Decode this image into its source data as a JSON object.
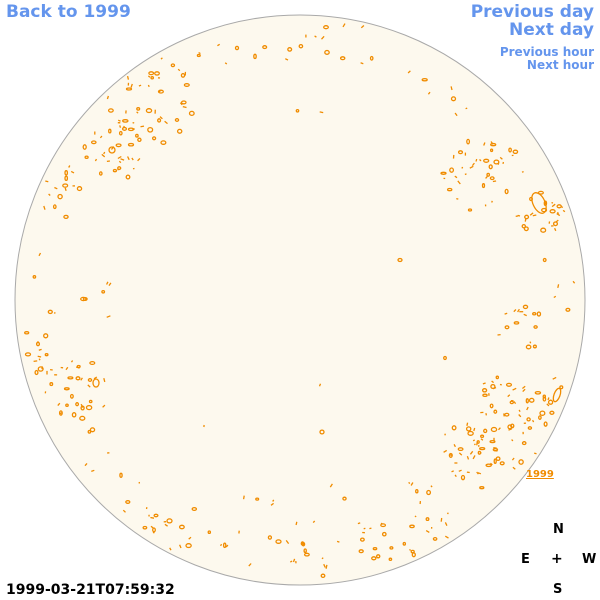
{
  "nav": {
    "back_label": "Back to 1999",
    "previous_day_label": "Previous day",
    "next_day_label": "Next day",
    "previous_hour_label": "Previous hour",
    "next_hour_label": "Next hour"
  },
  "region_label": "1999",
  "timestamp": "1999-03-21T07:59:32",
  "compass": {
    "north": "N",
    "east": "E",
    "center": "+",
    "west": "W",
    "south": "S"
  },
  "colors": {
    "link": "#6495ed",
    "disk_fill": "#fdf9ee",
    "disk_stroke": "#a9a9a9",
    "contour": "#f08c00"
  }
}
